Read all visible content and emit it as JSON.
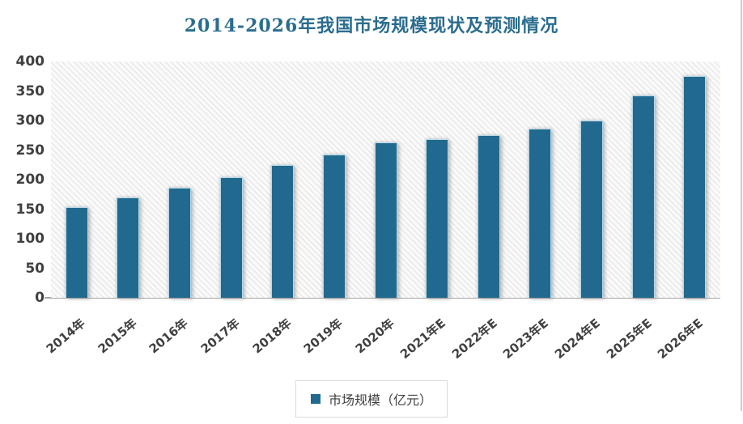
{
  "chart_data": {
    "type": "bar",
    "title": "2014-2026年我国市场规模现状及预测情况",
    "categories": [
      "2014年",
      "2015年",
      "2016年",
      "2017年",
      "2018年",
      "2019年",
      "2020年",
      "2021年E",
      "2022年E",
      "2023年E",
      "2024年E",
      "2025年E",
      "2026年E"
    ],
    "series": [
      {
        "name": "市场规模（亿元）",
        "values": [
          153,
          170,
          186,
          204,
          225,
          243,
          263,
          268,
          276,
          286,
          300,
          343,
          375
        ]
      }
    ],
    "xlabel": "",
    "ylabel": "",
    "ylim": [
      0,
      400
    ],
    "ytick_step": 50,
    "yticks": [
      0,
      50,
      100,
      150,
      200,
      250,
      300,
      350,
      400
    ],
    "grid": false,
    "plot_background": "diagonal-hatch",
    "x_label_rotation_deg": 40,
    "legend_position": "bottom",
    "colors": {
      "bar_fill": "#21698e",
      "bar_border": "#b5d8e7",
      "title_color": "#2b6d8e",
      "axis_text": "#404040",
      "axis_line": "#a6a6a6",
      "legend_border": "#d9d9d9"
    }
  }
}
